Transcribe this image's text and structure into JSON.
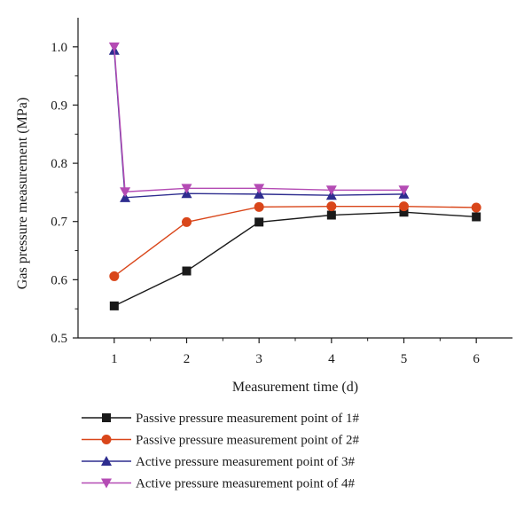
{
  "chart_data": {
    "type": "line",
    "title": "",
    "xlabel": "Measurement time (d)",
    "ylabel": "Gas pressure measurement (MPa)",
    "xlim": [
      0.5,
      6.5
    ],
    "ylim": [
      0.5,
      1.05
    ],
    "x_ticks": [
      1,
      2,
      3,
      4,
      5,
      6
    ],
    "y_ticks": [
      "0.5",
      "0.6",
      "0.7",
      "0.8",
      "0.9",
      "1.0"
    ],
    "grid": false,
    "legend_position": "bottom",
    "series": [
      {
        "name": "Passive pressure measurement point of 1#",
        "color": "#1a1a1a",
        "marker": "square",
        "x": [
          1,
          2,
          3,
          4,
          5,
          6
        ],
        "y": [
          0.555,
          0.615,
          0.699,
          0.711,
          0.716,
          0.708
        ]
      },
      {
        "name": "Passive pressure measurement point of 2#",
        "color": "#d9461a",
        "marker": "circle",
        "x": [
          1,
          2,
          3,
          4,
          5,
          6
        ],
        "y": [
          0.606,
          0.699,
          0.725,
          0.726,
          0.726,
          0.724
        ]
      },
      {
        "name": "Active pressure measurement point of 3#",
        "color": "#2e2d8f",
        "marker": "triangle-up",
        "x": [
          1,
          1.15,
          2,
          3,
          4,
          5
        ],
        "y": [
          0.994,
          0.741,
          0.748,
          0.747,
          0.745,
          0.747
        ]
      },
      {
        "name": "Active pressure measurement point of 4#",
        "color": "#b44bb4",
        "marker": "triangle-down",
        "x": [
          1,
          1.15,
          2,
          3,
          4,
          5
        ],
        "y": [
          1.0,
          0.751,
          0.757,
          0.757,
          0.754,
          0.754
        ]
      }
    ]
  }
}
